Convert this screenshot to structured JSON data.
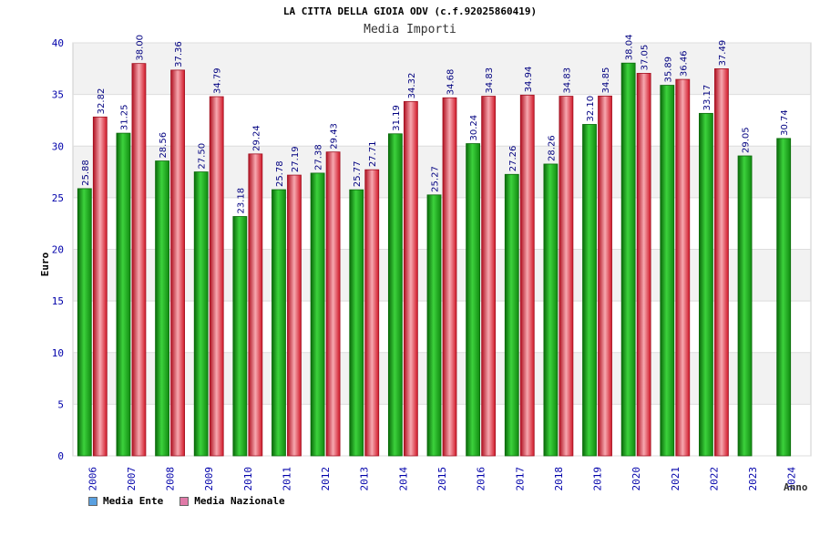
{
  "header": {
    "title": "LA CITTA DELLA GIOIA ODV (c.f.92025860419)",
    "subtitle": "Media Importi"
  },
  "legend": {
    "items": [
      {
        "label": "Media Ente",
        "color": "#5aa0e0"
      },
      {
        "label": "Media Nazionale",
        "color": "#e07aa8"
      }
    ]
  },
  "colors": {
    "ente": "#22b422",
    "ente_dark": "#0a6a0a",
    "nazionale": "#f03840",
    "nazionale_dark": "#a01020",
    "axis_text": "#0000aa",
    "band": "#f2f2f2",
    "value_label": "#000080"
  },
  "chart_data": {
    "type": "bar",
    "title": "LA CITTA DELLA GIOIA ODV (c.f.92025860419)",
    "subtitle": "Media Importi",
    "xlabel": "Anno",
    "ylabel": "Euro",
    "ylim": [
      0,
      40
    ],
    "yticks": [
      0,
      5,
      10,
      15,
      20,
      25,
      30,
      35,
      40
    ],
    "categories": [
      "2006",
      "2007",
      "2008",
      "2009",
      "2010",
      "2011",
      "2012",
      "2013",
      "2014",
      "2015",
      "2016",
      "2017",
      "2018",
      "2019",
      "2020",
      "2021",
      "2022",
      "2023",
      "2024"
    ],
    "series": [
      {
        "name": "Media Ente",
        "values": [
          25.88,
          31.25,
          28.56,
          27.5,
          23.18,
          25.78,
          27.38,
          25.77,
          31.19,
          25.27,
          30.24,
          27.26,
          28.26,
          32.1,
          38.04,
          35.89,
          33.17,
          29.05,
          30.74
        ]
      },
      {
        "name": "Media Nazionale",
        "values": [
          32.82,
          38.0,
          37.36,
          34.79,
          29.24,
          27.19,
          29.43,
          27.71,
          34.32,
          34.68,
          34.83,
          34.94,
          34.83,
          34.85,
          37.05,
          36.46,
          37.49,
          null,
          null
        ]
      }
    ]
  }
}
